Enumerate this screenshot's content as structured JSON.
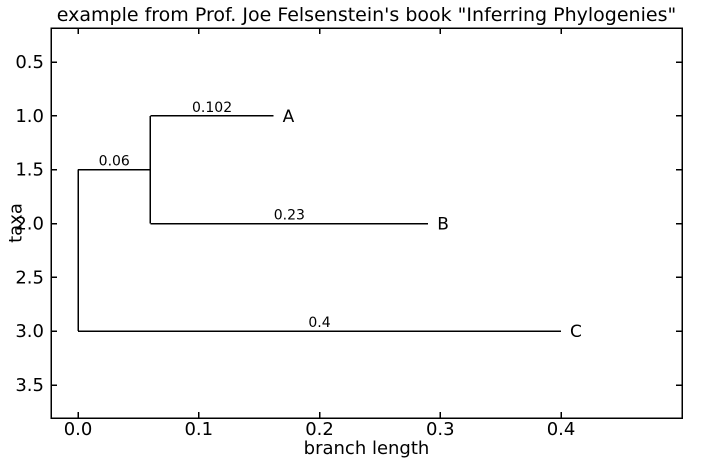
{
  "title": "example from Prof. Joe Felsenstein's book \"Inferring Phylogenies\"",
  "chart_data": {
    "type": "line",
    "subtype": "phylogenetic_tree",
    "title": "example from Prof. Joe Felsenstein's book \"Inferring Phylogenies\"",
    "xlabel": "branch length",
    "ylabel": "taxa",
    "xlim": [
      -0.0224,
      0.5002
    ],
    "ylim_top": 0.184,
    "ylim_bottom": 3.806,
    "y_axis_inverted": true,
    "grid": false,
    "legend": "none",
    "colors": {
      "line": "#000000",
      "background": "#ffffff",
      "text": "#000000"
    },
    "xticks": {
      "values": [
        0.0,
        0.1,
        0.2,
        0.3,
        0.4
      ],
      "labels": [
        "0.0",
        "0.1",
        "0.2",
        "0.3",
        "0.4"
      ]
    },
    "yticks": {
      "values": [
        0.5,
        1.0,
        1.5,
        2.0,
        2.5,
        3.0,
        3.5
      ],
      "labels": [
        "0.5",
        "1.0",
        "1.5",
        "2.0",
        "2.5",
        "3.0",
        "3.5"
      ]
    },
    "segments": [
      {
        "name": "root-edge-vertical",
        "x1": 0.0,
        "y1": 1.5,
        "x2": 0.0,
        "y2": 3.0
      },
      {
        "name": "internal-branch",
        "x1": 0.0,
        "y1": 1.5,
        "x2": 0.06,
        "y2": 1.5,
        "label": "0.06"
      },
      {
        "name": "clade-AB-vertical",
        "x1": 0.06,
        "y1": 1.0,
        "x2": 0.06,
        "y2": 2.0
      },
      {
        "name": "branch-A",
        "x1": 0.06,
        "y1": 1.0,
        "x2": 0.162,
        "y2": 1.0,
        "label": "0.102",
        "tip": "A"
      },
      {
        "name": "branch-B",
        "x1": 0.06,
        "y1": 2.0,
        "x2": 0.29,
        "y2": 2.0,
        "label": "0.23",
        "tip": "B"
      },
      {
        "name": "branch-C",
        "x1": 0.0,
        "y1": 3.0,
        "x2": 0.4,
        "y2": 3.0,
        "label": "0.4",
        "tip": "C"
      }
    ],
    "taxa": [
      {
        "label": "A",
        "y": 1.0,
        "branch_length": 0.102
      },
      {
        "label": "B",
        "y": 2.0,
        "branch_length": 0.23
      },
      {
        "label": "C",
        "y": 3.0,
        "branch_length": 0.4
      }
    ]
  }
}
